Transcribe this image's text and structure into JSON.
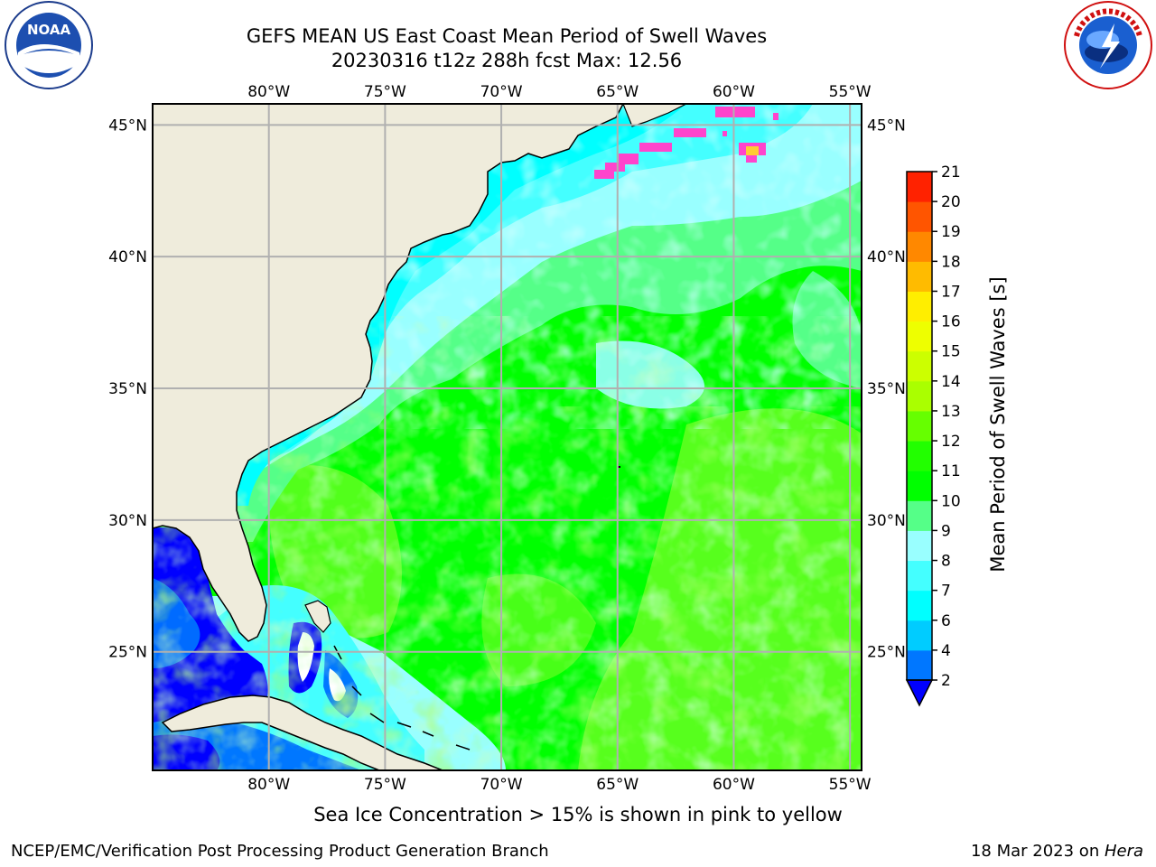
{
  "title": {
    "line1": "GEFS MEAN US East Coast Mean Period of Swell Waves",
    "line2": "20230316 t12z 288h fcst   Max: 12.56"
  },
  "logos": {
    "left": "NOAA",
    "right": "NATIONAL WEATHER SERVICE"
  },
  "map": {
    "lon_labels": [
      "80°W",
      "75°W",
      "70°W",
      "65°W",
      "60°W",
      "55°W"
    ],
    "lat_labels": [
      "45°N",
      "40°N",
      "35°N",
      "30°N",
      "25°N"
    ],
    "lon_values": [
      -80,
      -75,
      -70,
      -65,
      -60,
      -55
    ],
    "lat_values": [
      45,
      40,
      35,
      30,
      25
    ],
    "extent": {
      "lon_min": -85,
      "lon_max": -54.5,
      "lat_min": 20.5,
      "lat_max": 45.8
    },
    "colors": {
      "land": "#efecdc",
      "gulf_deep": "#0000ff",
      "shelf_blue": "#0077ff",
      "near_coast": "#00ffff",
      "light_cyan": "#99ffff",
      "mid_green": "#55ff88",
      "green": "#00ff00",
      "lime": "#66ff22",
      "yellow_green": "#aaff00",
      "gridline": "#b0b0b0"
    }
  },
  "colorbar": {
    "levels": [
      2,
      4,
      6,
      7,
      8,
      9,
      10,
      11,
      12,
      13,
      14,
      15,
      16,
      17,
      18,
      19,
      20,
      21
    ],
    "tick_labels": [
      "2",
      "4",
      "6",
      "7",
      "8",
      "9",
      "10",
      "11",
      "12",
      "13",
      "14",
      "15",
      "16",
      "17",
      "18",
      "19",
      "20",
      "21"
    ],
    "colors": [
      "#0077ff",
      "#00ccff",
      "#00ffff",
      "#44ffff",
      "#99ffff",
      "#55ff88",
      "#00ff00",
      "#22ff00",
      "#66ff00",
      "#aaff00",
      "#ccff00",
      "#eeff00",
      "#ffee00",
      "#ffbb00",
      "#ff8800",
      "#ff5500",
      "#ff2200"
    ],
    "under_color": "#0000ff",
    "label": "Mean Period of Swell Waves [s]"
  },
  "caption": "Sea Ice Concentration > 15% is shown in pink to yellow",
  "footer": {
    "left": "NCEP/EMC/Verification Post Processing Product Generation Branch",
    "right_date": "18 Mar 2023 on ",
    "right_host": "Hera"
  }
}
